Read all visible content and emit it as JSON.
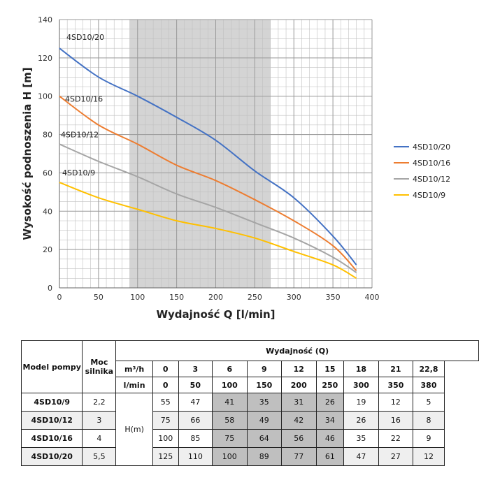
{
  "chart_data": {
    "type": "line",
    "xlabel": "Wydajność Q [l/min]",
    "ylabel": "Wysokość podnoszenia H [m]",
    "xlim": [
      0,
      400
    ],
    "ylim": [
      0,
      140
    ],
    "xticks": [
      0,
      50,
      100,
      150,
      200,
      250,
      300,
      350,
      400
    ],
    "yticks": [
      0,
      20,
      40,
      60,
      80,
      100,
      120,
      140
    ],
    "grid": true,
    "legend": "right",
    "shaded_region_x": [
      90,
      270
    ],
    "x": [
      0,
      50,
      100,
      150,
      200,
      250,
      300,
      350,
      380
    ],
    "series": [
      {
        "name": "4SD10/20",
        "color": "#4472c4",
        "values": [
          125,
          110,
          100,
          89,
          77,
          61,
          47,
          27,
          12
        ]
      },
      {
        "name": "4SD10/16",
        "color": "#ed7d31",
        "values": [
          100,
          85,
          75,
          64,
          56,
          46,
          35,
          22,
          9
        ]
      },
      {
        "name": "4SD10/12",
        "color": "#a5a5a5",
        "values": [
          75,
          66,
          58,
          49,
          42,
          34,
          26,
          16,
          8
        ]
      },
      {
        "name": "4SD10/9",
        "color": "#ffc000",
        "values": [
          55,
          47,
          41,
          35,
          31,
          26,
          19,
          12,
          5
        ]
      }
    ]
  },
  "table": {
    "h_model": "Model pompy",
    "h_moc": "Moc silnika",
    "h_wyd": "Wydajność (Q)",
    "unit_m3h": "m³/h",
    "unit_lmin": "l/min",
    "h_label": "H(m)",
    "m3h": [
      "0",
      "3",
      "6",
      "9",
      "12",
      "15",
      "18",
      "21",
      "22,8"
    ],
    "lmin": [
      "0",
      "50",
      "100",
      "150",
      "200",
      "250",
      "300",
      "350",
      "380"
    ],
    "rows": [
      {
        "model": "4SD10/9",
        "power": "2,2",
        "h": [
          "55",
          "47",
          "41",
          "35",
          "31",
          "26",
          "19",
          "12",
          "5"
        ]
      },
      {
        "model": "4SD10/12",
        "power": "3",
        "h": [
          "75",
          "66",
          "58",
          "49",
          "42",
          "34",
          "26",
          "16",
          "8"
        ]
      },
      {
        "model": "4SD10/16",
        "power": "4",
        "h": [
          "100",
          "85",
          "75",
          "64",
          "56",
          "46",
          "35",
          "22",
          "9"
        ]
      },
      {
        "model": "4SD10/20",
        "power": "5,5",
        "h": [
          "125",
          "110",
          "100",
          "89",
          "77",
          "61",
          "47",
          "27",
          "12"
        ]
      }
    ]
  }
}
